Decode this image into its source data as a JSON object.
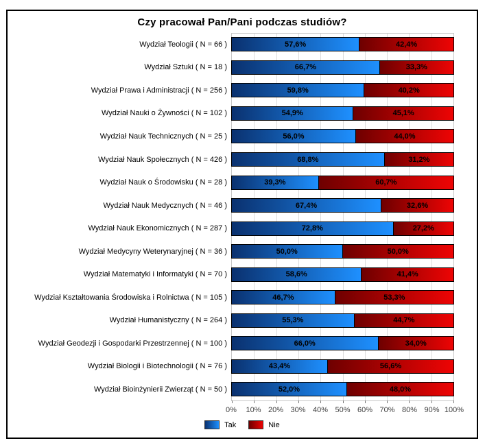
{
  "frame": {
    "background": "#ffffff",
    "border_color": "#000000"
  },
  "chart_data": {
    "type": "bar",
    "orientation": "horizontal",
    "stacked": true,
    "title": "Czy pracował Pan/Pani podczas studiów?",
    "categories": [
      "Wydział Teologii ( N = 66 )",
      "Wydział Sztuki ( N = 18 )",
      "Wydział Prawa i Administracji ( N = 256 )",
      "Wydział Nauki o Żywności ( N = 102 )",
      "Wydział Nauk Technicznych ( N = 25 )",
      "Wydział Nauk Społecznych ( N = 426 )",
      "Wydział Nauk o Środowisku ( N = 28 )",
      "Wydział Nauk Medycznych ( N = 46 )",
      "Wydział Nauk Ekonomicznych ( N = 287 )",
      "Wydział Medycyny Weterynaryjnej ( N = 36 )",
      "Wydział Matematyki i Informatyki ( N = 70 )",
      "Wydział Kształtowania Środowiska i Rolnictwa ( N = 105 )",
      "Wydział Humanistyczny ( N = 264 )",
      "Wydział Geodezji i Gospodarki Przestrzennej ( N = 100 )",
      "Wydział Biologii i Biotechnologii ( N = 76 )",
      "Wydział Bioinżynierii Zwierząt ( N = 50 )"
    ],
    "series": [
      {
        "name": "Tak",
        "color_start": "#0a316f",
        "color_end": "#1e90ff",
        "values": [
          57.6,
          66.7,
          59.8,
          54.9,
          56.0,
          68.8,
          39.3,
          67.4,
          72.8,
          50.0,
          58.6,
          46.7,
          55.3,
          66.0,
          43.4,
          52.0
        ],
        "labels": [
          "57,6%",
          "66,7%",
          "59,8%",
          "54,9%",
          "56,0%",
          "68,8%",
          "39,3%",
          "67,4%",
          "72,8%",
          "50,0%",
          "58,6%",
          "46,7%",
          "55,3%",
          "66,0%",
          "43,4%",
          "52,0%"
        ]
      },
      {
        "name": "Nie",
        "color_start": "#6e0000",
        "color_end": "#ee0404",
        "values": [
          42.4,
          33.3,
          40.2,
          45.1,
          44.0,
          31.2,
          60.7,
          32.6,
          27.2,
          50.0,
          41.4,
          53.3,
          44.7,
          34.0,
          56.6,
          48.0
        ],
        "labels": [
          "42,4%",
          "33,3%",
          "40,2%",
          "45,1%",
          "44,0%",
          "31,2%",
          "60,7%",
          "32,6%",
          "27,2%",
          "50,0%",
          "41,4%",
          "53,3%",
          "44,7%",
          "34,0%",
          "56,6%",
          "48,0%"
        ]
      }
    ],
    "x_ticks": [
      "0%",
      "10%",
      "20%",
      "30%",
      "40%",
      "50%",
      "60%",
      "70%",
      "80%",
      "90%",
      "100%"
    ],
    "xlim": [
      0,
      100
    ],
    "grid": "vertical",
    "legend_position": "bottom"
  }
}
